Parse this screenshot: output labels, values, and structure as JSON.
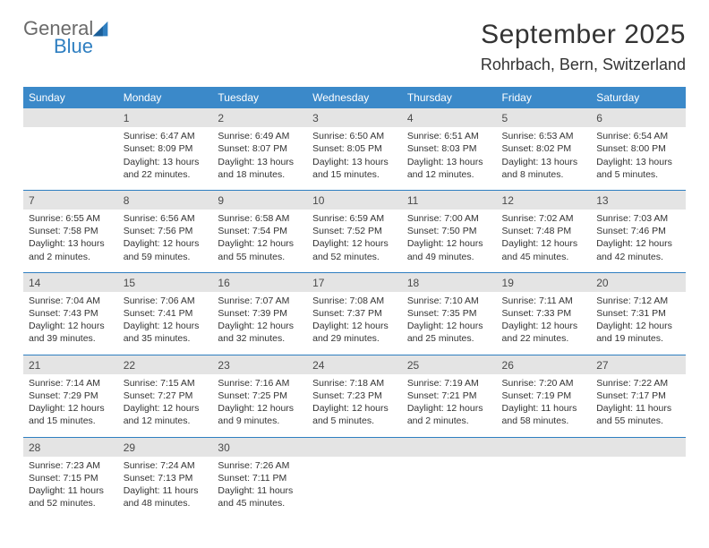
{
  "logo": {
    "general": "General",
    "blue": "Blue"
  },
  "title": "September 2025",
  "location": "Rohrbach, Bern, Switzerland",
  "colors": {
    "header_bg": "#3b89c9",
    "header_text": "#ffffff",
    "daynum_bg": "#e4e4e4",
    "row_divider": "#2f7fc1",
    "logo_grey": "#6a6a6a",
    "logo_blue": "#2f7fc1",
    "body_text": "#333333",
    "page_bg": "#ffffff"
  },
  "weekdays": [
    "Sunday",
    "Monday",
    "Tuesday",
    "Wednesday",
    "Thursday",
    "Friday",
    "Saturday"
  ],
  "weeks": [
    {
      "nums": [
        "",
        "1",
        "2",
        "3",
        "4",
        "5",
        "6"
      ],
      "cells": [
        {
          "sunrise": "",
          "sunset": "",
          "daylight1": "",
          "daylight2": ""
        },
        {
          "sunrise": "Sunrise: 6:47 AM",
          "sunset": "Sunset: 8:09 PM",
          "daylight1": "Daylight: 13 hours",
          "daylight2": "and 22 minutes."
        },
        {
          "sunrise": "Sunrise: 6:49 AM",
          "sunset": "Sunset: 8:07 PM",
          "daylight1": "Daylight: 13 hours",
          "daylight2": "and 18 minutes."
        },
        {
          "sunrise": "Sunrise: 6:50 AM",
          "sunset": "Sunset: 8:05 PM",
          "daylight1": "Daylight: 13 hours",
          "daylight2": "and 15 minutes."
        },
        {
          "sunrise": "Sunrise: 6:51 AM",
          "sunset": "Sunset: 8:03 PM",
          "daylight1": "Daylight: 13 hours",
          "daylight2": "and 12 minutes."
        },
        {
          "sunrise": "Sunrise: 6:53 AM",
          "sunset": "Sunset: 8:02 PM",
          "daylight1": "Daylight: 13 hours",
          "daylight2": "and 8 minutes."
        },
        {
          "sunrise": "Sunrise: 6:54 AM",
          "sunset": "Sunset: 8:00 PM",
          "daylight1": "Daylight: 13 hours",
          "daylight2": "and 5 minutes."
        }
      ]
    },
    {
      "nums": [
        "7",
        "8",
        "9",
        "10",
        "11",
        "12",
        "13"
      ],
      "cells": [
        {
          "sunrise": "Sunrise: 6:55 AM",
          "sunset": "Sunset: 7:58 PM",
          "daylight1": "Daylight: 13 hours",
          "daylight2": "and 2 minutes."
        },
        {
          "sunrise": "Sunrise: 6:56 AM",
          "sunset": "Sunset: 7:56 PM",
          "daylight1": "Daylight: 12 hours",
          "daylight2": "and 59 minutes."
        },
        {
          "sunrise": "Sunrise: 6:58 AM",
          "sunset": "Sunset: 7:54 PM",
          "daylight1": "Daylight: 12 hours",
          "daylight2": "and 55 minutes."
        },
        {
          "sunrise": "Sunrise: 6:59 AM",
          "sunset": "Sunset: 7:52 PM",
          "daylight1": "Daylight: 12 hours",
          "daylight2": "and 52 minutes."
        },
        {
          "sunrise": "Sunrise: 7:00 AM",
          "sunset": "Sunset: 7:50 PM",
          "daylight1": "Daylight: 12 hours",
          "daylight2": "and 49 minutes."
        },
        {
          "sunrise": "Sunrise: 7:02 AM",
          "sunset": "Sunset: 7:48 PM",
          "daylight1": "Daylight: 12 hours",
          "daylight2": "and 45 minutes."
        },
        {
          "sunrise": "Sunrise: 7:03 AM",
          "sunset": "Sunset: 7:46 PM",
          "daylight1": "Daylight: 12 hours",
          "daylight2": "and 42 minutes."
        }
      ]
    },
    {
      "nums": [
        "14",
        "15",
        "16",
        "17",
        "18",
        "19",
        "20"
      ],
      "cells": [
        {
          "sunrise": "Sunrise: 7:04 AM",
          "sunset": "Sunset: 7:43 PM",
          "daylight1": "Daylight: 12 hours",
          "daylight2": "and 39 minutes."
        },
        {
          "sunrise": "Sunrise: 7:06 AM",
          "sunset": "Sunset: 7:41 PM",
          "daylight1": "Daylight: 12 hours",
          "daylight2": "and 35 minutes."
        },
        {
          "sunrise": "Sunrise: 7:07 AM",
          "sunset": "Sunset: 7:39 PM",
          "daylight1": "Daylight: 12 hours",
          "daylight2": "and 32 minutes."
        },
        {
          "sunrise": "Sunrise: 7:08 AM",
          "sunset": "Sunset: 7:37 PM",
          "daylight1": "Daylight: 12 hours",
          "daylight2": "and 29 minutes."
        },
        {
          "sunrise": "Sunrise: 7:10 AM",
          "sunset": "Sunset: 7:35 PM",
          "daylight1": "Daylight: 12 hours",
          "daylight2": "and 25 minutes."
        },
        {
          "sunrise": "Sunrise: 7:11 AM",
          "sunset": "Sunset: 7:33 PM",
          "daylight1": "Daylight: 12 hours",
          "daylight2": "and 22 minutes."
        },
        {
          "sunrise": "Sunrise: 7:12 AM",
          "sunset": "Sunset: 7:31 PM",
          "daylight1": "Daylight: 12 hours",
          "daylight2": "and 19 minutes."
        }
      ]
    },
    {
      "nums": [
        "21",
        "22",
        "23",
        "24",
        "25",
        "26",
        "27"
      ],
      "cells": [
        {
          "sunrise": "Sunrise: 7:14 AM",
          "sunset": "Sunset: 7:29 PM",
          "daylight1": "Daylight: 12 hours",
          "daylight2": "and 15 minutes."
        },
        {
          "sunrise": "Sunrise: 7:15 AM",
          "sunset": "Sunset: 7:27 PM",
          "daylight1": "Daylight: 12 hours",
          "daylight2": "and 12 minutes."
        },
        {
          "sunrise": "Sunrise: 7:16 AM",
          "sunset": "Sunset: 7:25 PM",
          "daylight1": "Daylight: 12 hours",
          "daylight2": "and 9 minutes."
        },
        {
          "sunrise": "Sunrise: 7:18 AM",
          "sunset": "Sunset: 7:23 PM",
          "daylight1": "Daylight: 12 hours",
          "daylight2": "and 5 minutes."
        },
        {
          "sunrise": "Sunrise: 7:19 AM",
          "sunset": "Sunset: 7:21 PM",
          "daylight1": "Daylight: 12 hours",
          "daylight2": "and 2 minutes."
        },
        {
          "sunrise": "Sunrise: 7:20 AM",
          "sunset": "Sunset: 7:19 PM",
          "daylight1": "Daylight: 11 hours",
          "daylight2": "and 58 minutes."
        },
        {
          "sunrise": "Sunrise: 7:22 AM",
          "sunset": "Sunset: 7:17 PM",
          "daylight1": "Daylight: 11 hours",
          "daylight2": "and 55 minutes."
        }
      ]
    },
    {
      "nums": [
        "28",
        "29",
        "30",
        "",
        "",
        "",
        ""
      ],
      "cells": [
        {
          "sunrise": "Sunrise: 7:23 AM",
          "sunset": "Sunset: 7:15 PM",
          "daylight1": "Daylight: 11 hours",
          "daylight2": "and 52 minutes."
        },
        {
          "sunrise": "Sunrise: 7:24 AM",
          "sunset": "Sunset: 7:13 PM",
          "daylight1": "Daylight: 11 hours",
          "daylight2": "and 48 minutes."
        },
        {
          "sunrise": "Sunrise: 7:26 AM",
          "sunset": "Sunset: 7:11 PM",
          "daylight1": "Daylight: 11 hours",
          "daylight2": "and 45 minutes."
        },
        {
          "sunrise": "",
          "sunset": "",
          "daylight1": "",
          "daylight2": ""
        },
        {
          "sunrise": "",
          "sunset": "",
          "daylight1": "",
          "daylight2": ""
        },
        {
          "sunrise": "",
          "sunset": "",
          "daylight1": "",
          "daylight2": ""
        },
        {
          "sunrise": "",
          "sunset": "",
          "daylight1": "",
          "daylight2": ""
        }
      ]
    }
  ]
}
